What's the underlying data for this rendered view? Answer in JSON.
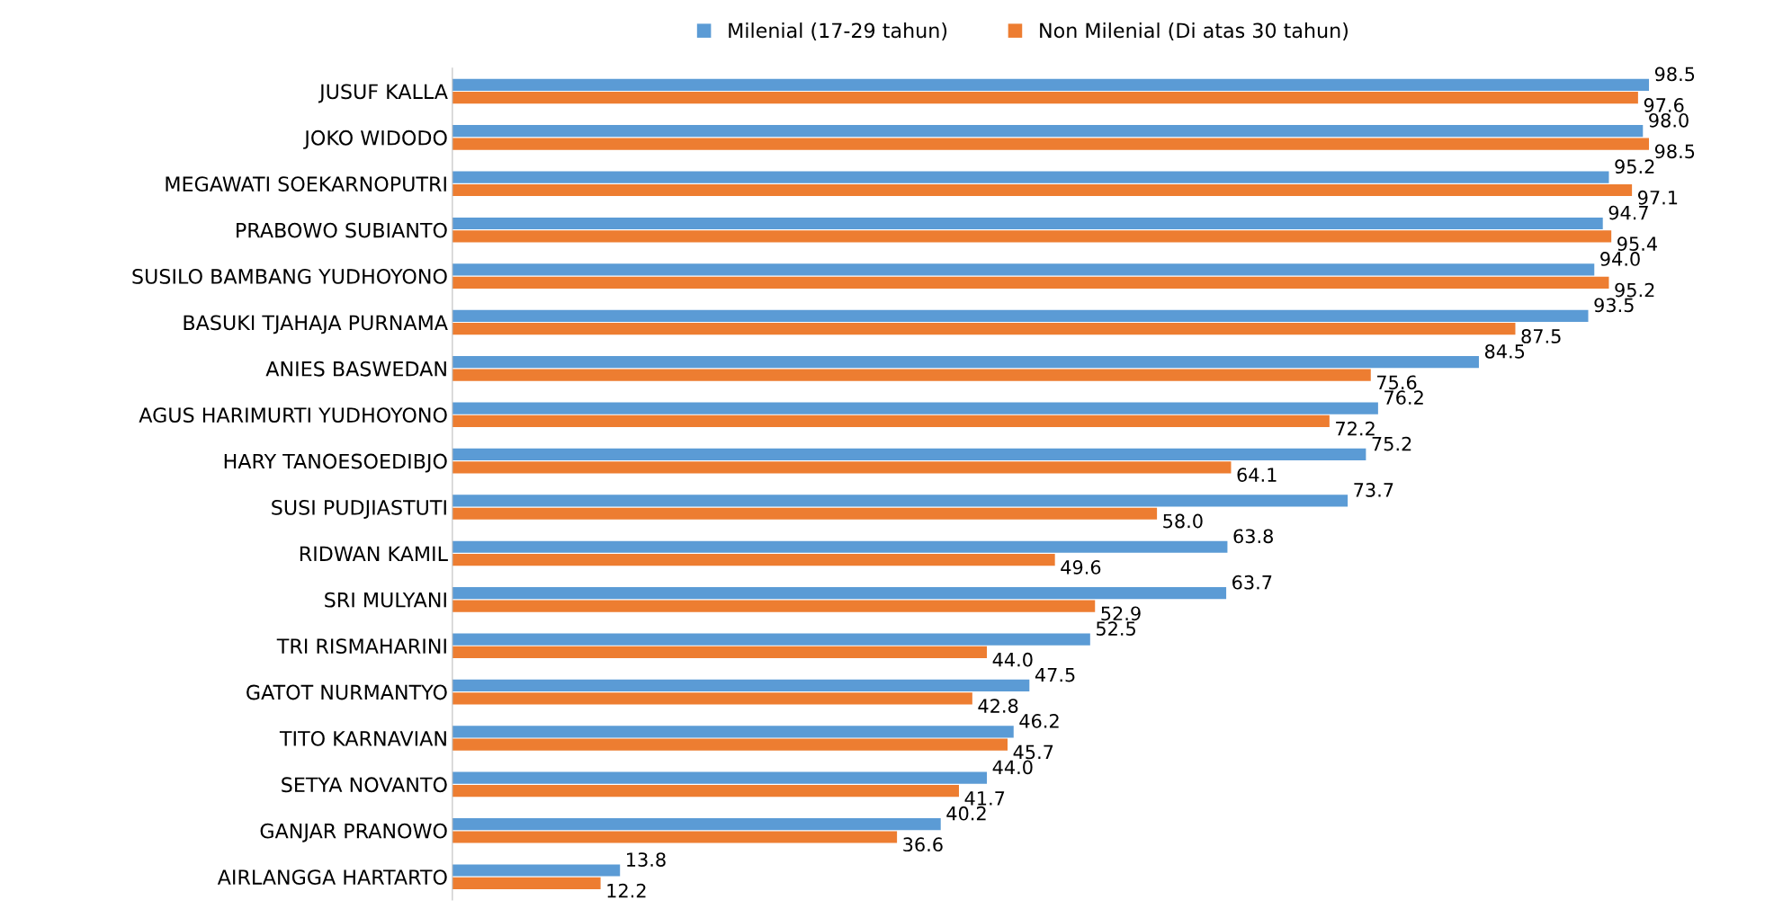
{
  "chart_data": {
    "type": "bar",
    "orientation": "horizontal",
    "categories": [
      "JUSUF KALLA",
      "JOKO WIDODO",
      "MEGAWATI SOEKARNOPUTRI",
      "PRABOWO SUBIANTO",
      "SUSILO BAMBANG YUDHOYONO",
      "BASUKI TJAHAJA PURNAMA",
      "ANIES BASWEDAN",
      "AGUS HARIMURTI YUDHOYONO",
      "HARY TANOESOEDIBJO",
      "SUSI PUDJIASTUTI",
      "RIDWAN KAMIL",
      "SRI MULYANI",
      "TRI RISMAHARINI",
      "GATOT NURMANTYO",
      "TITO KARNAVIAN",
      "SETYA NOVANTO",
      "GANJAR PRANOWO",
      "AIRLANGGA HARTARTO"
    ],
    "series": [
      {
        "name": "Milenial (17-29 tahun)",
        "color": "#5b9bd5",
        "values": [
          98.5,
          98.0,
          95.2,
          94.7,
          94.0,
          93.5,
          84.5,
          76.2,
          75.2,
          73.7,
          63.8,
          63.7,
          52.5,
          47.5,
          46.2,
          44.0,
          40.2,
          13.8
        ],
        "value_labels": [
          "98.5",
          "98.0",
          "95.2",
          "94.7",
          "94.0",
          "93.5",
          "84.5",
          "76.2",
          "75.2",
          "73.7",
          "63.8",
          "63.7",
          "52.5",
          "47.5",
          "46.2",
          "44.0",
          "40.2",
          "13.8"
        ]
      },
      {
        "name": "Non Milenial (Di atas 30 tahun)",
        "color": "#ed7d31",
        "values": [
          97.6,
          98.5,
          97.1,
          95.4,
          95.2,
          87.5,
          75.6,
          72.2,
          64.1,
          58.0,
          49.6,
          52.9,
          44.0,
          42.8,
          45.7,
          41.7,
          36.6,
          12.2
        ],
        "value_labels": [
          "97.6",
          "98.5",
          "97.1",
          "95.4",
          "95.2",
          "87.5",
          "75.6",
          "72.2",
          "64.1",
          "58.0",
          "49.6",
          "52.9",
          "44.0",
          "42.8",
          "45.7",
          "41.7",
          "36.6",
          "12.2"
        ]
      }
    ],
    "legend": "top",
    "grid": false,
    "tick_labels": "y"
  }
}
